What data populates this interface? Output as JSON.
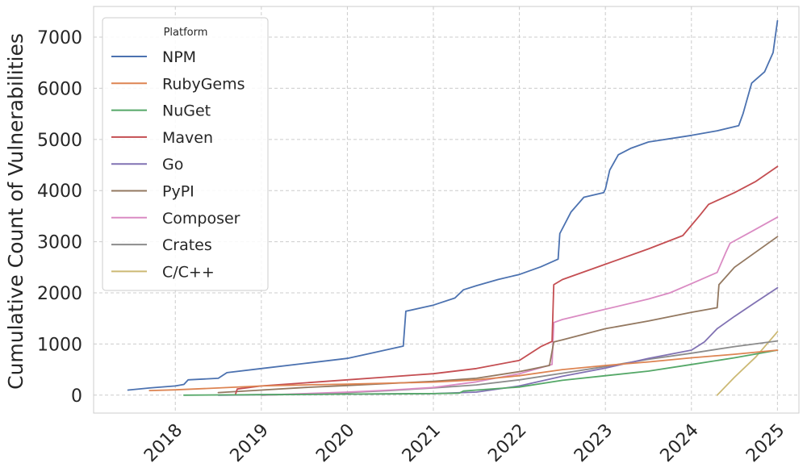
{
  "chart_data": {
    "type": "line",
    "title": "",
    "xlabel": "",
    "ylabel": "Cumulative Count of Vulnerabilities",
    "xlim": [
      2017.05,
      2025.25
    ],
    "ylim": [
      -350,
      7600
    ],
    "x_ticks": [
      2018,
      2019,
      2020,
      2021,
      2022,
      2023,
      2024,
      2025
    ],
    "x_tick_labels": [
      "2018",
      "2019",
      "2020",
      "2021",
      "2022",
      "2023",
      "2024",
      "2025"
    ],
    "y_ticks": [
      0,
      1000,
      2000,
      3000,
      4000,
      5000,
      6000,
      7000
    ],
    "y_tick_labels": [
      "0",
      "1000",
      "2000",
      "3000",
      "4000",
      "5000",
      "6000",
      "7000"
    ],
    "grid": true,
    "legend": {
      "title": "Platform",
      "position": "top-left"
    },
    "series": [
      {
        "name": "NPM",
        "color": "#4c72b0",
        "x": [
          2017.45,
          2017.7,
          2018.0,
          2018.1,
          2018.15,
          2018.5,
          2018.6,
          2019.0,
          2019.5,
          2020.0,
          2020.3,
          2020.65,
          2020.68,
          2021.0,
          2021.25,
          2021.35,
          2021.5,
          2021.75,
          2022.0,
          2022.25,
          2022.45,
          2022.47,
          2022.6,
          2022.75,
          2022.98,
          2023.0,
          2023.05,
          2023.15,
          2023.3,
          2023.5,
          2024.0,
          2024.3,
          2024.55,
          2024.6,
          2024.7,
          2024.85,
          2024.95,
          2025.0
        ],
        "y": [
          100,
          140,
          180,
          210,
          300,
          330,
          440,
          520,
          620,
          720,
          830,
          960,
          1640,
          1760,
          1900,
          2060,
          2140,
          2260,
          2360,
          2510,
          2660,
          3160,
          3580,
          3870,
          3960,
          4030,
          4400,
          4700,
          4830,
          4950,
          5080,
          5170,
          5270,
          5500,
          6100,
          6320,
          6700,
          7320
        ]
      },
      {
        "name": "RubyGems",
        "color": "#dd8452",
        "x": [
          2017.7,
          2018.0,
          2018.5,
          2019.0,
          2019.5,
          2020.0,
          2020.5,
          2021.0,
          2021.5,
          2022.0,
          2022.5,
          2023.0,
          2023.5,
          2024.0,
          2024.5,
          2025.0
        ],
        "y": [
          90,
          105,
          140,
          180,
          200,
          215,
          235,
          255,
          300,
          380,
          500,
          580,
          650,
          730,
          800,
          880
        ]
      },
      {
        "name": "NuGet",
        "color": "#55a868",
        "x": [
          2018.1,
          2018.5,
          2019.0,
          2019.5,
          2020.0,
          2020.5,
          2021.0,
          2021.3,
          2021.35,
          2021.5,
          2022.0,
          2022.5,
          2023.0,
          2023.5,
          2024.0,
          2024.5,
          2025.0
        ],
        "y": [
          0,
          5,
          10,
          15,
          20,
          25,
          30,
          40,
          80,
          100,
          160,
          290,
          380,
          470,
          600,
          730,
          880
        ]
      },
      {
        "name": "Maven",
        "color": "#c44e52",
        "x": [
          2018.7,
          2018.72,
          2019.0,
          2019.5,
          2020.0,
          2020.5,
          2021.0,
          2021.5,
          2022.0,
          2022.25,
          2022.38,
          2022.4,
          2022.5,
          2023.0,
          2023.5,
          2023.9,
          2024.1,
          2024.2,
          2024.5,
          2024.75,
          2025.0
        ],
        "y": [
          20,
          120,
          180,
          240,
          300,
          360,
          420,
          520,
          680,
          950,
          1050,
          2160,
          2260,
          2560,
          2860,
          3120,
          3520,
          3730,
          3960,
          4180,
          4470
        ]
      },
      {
        "name": "Go",
        "color": "#8172b3",
        "x": [
          2018.5,
          2019.0,
          2020.0,
          2021.0,
          2021.5,
          2022.0,
          2022.5,
          2023.0,
          2023.5,
          2024.0,
          2024.15,
          2024.3,
          2024.5,
          2024.75,
          2025.0
        ],
        "y": [
          0,
          10,
          20,
          30,
          60,
          180,
          370,
          530,
          720,
          880,
          1040,
          1300,
          1540,
          1820,
          2100
        ]
      },
      {
        "name": "PyPI",
        "color": "#937860",
        "x": [
          2018.5,
          2019.0,
          2019.5,
          2020.0,
          2020.5,
          2021.0,
          2021.5,
          2022.0,
          2022.35,
          2022.4,
          2022.5,
          2023.0,
          2023.5,
          2024.0,
          2024.3,
          2024.32,
          2024.5,
          2024.75,
          2025.0
        ],
        "y": [
          50,
          100,
          150,
          190,
          230,
          270,
          330,
          460,
          580,
          1040,
          1080,
          1300,
          1450,
          1620,
          1710,
          2160,
          2500,
          2800,
          3100
        ]
      },
      {
        "name": "Composer",
        "color": "#da8bc3",
        "x": [
          2019.0,
          2019.5,
          2020.0,
          2020.5,
          2021.0,
          2021.5,
          2022.0,
          2022.38,
          2022.4,
          2022.5,
          2023.0,
          2023.5,
          2023.75,
          2024.0,
          2024.3,
          2024.4,
          2024.45,
          2024.7,
          2025.0
        ],
        "y": [
          0,
          30,
          60,
          100,
          150,
          260,
          420,
          600,
          1420,
          1480,
          1680,
          1880,
          2000,
          2180,
          2400,
          2790,
          2970,
          3200,
          3480
        ]
      },
      {
        "name": "Crates",
        "color": "#8c8c8c",
        "x": [
          2019.0,
          2019.5,
          2020.0,
          2020.5,
          2021.0,
          2021.5,
          2022.0,
          2022.5,
          2023.0,
          2023.5,
          2024.0,
          2024.5,
          2025.0
        ],
        "y": [
          0,
          20,
          50,
          90,
          140,
          200,
          300,
          430,
          560,
          700,
          820,
          950,
          1060
        ]
      },
      {
        "name": "C/C++",
        "color": "#ccb974",
        "x": [
          2024.3,
          2024.5,
          2024.75,
          2025.0
        ],
        "y": [
          0,
          350,
          750,
          1240
        ]
      }
    ]
  }
}
